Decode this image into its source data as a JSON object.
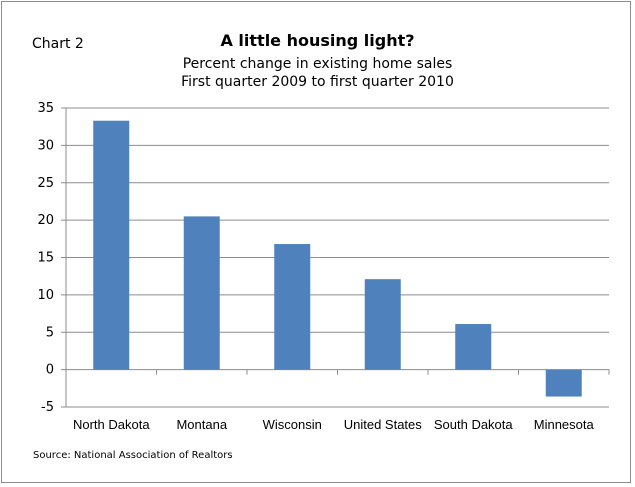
{
  "header": {
    "chart_label": "Chart 2",
    "title": "A little housing light?",
    "subtitle_line1": "Percent change in existing home sales",
    "subtitle_line2": "First quarter 2009 to first quarter 2010"
  },
  "footer": {
    "source": "Source: National Association of Realtors"
  },
  "chart_data": {
    "type": "bar",
    "title": "A little housing light?",
    "subtitle": "Percent change in existing home sales First quarter 2009 to first quarter 2010",
    "categories": [
      "North Dakota",
      "Montana",
      "Wisconsin",
      "United States",
      "South Dakota",
      "Minnesota"
    ],
    "values": [
      33.3,
      20.5,
      16.8,
      12.1,
      6.1,
      -3.6
    ],
    "ylim": [
      -5,
      35
    ],
    "yticks": [
      -5,
      0,
      5,
      10,
      15,
      20,
      25,
      30,
      35
    ],
    "grid": true,
    "legend": "none",
    "bar_color": "#4f81bd"
  }
}
